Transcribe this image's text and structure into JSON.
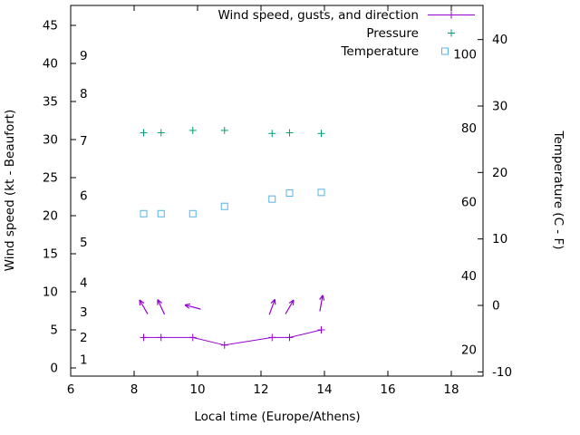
{
  "chart_data": {
    "type": "line",
    "title": "",
    "x_axis": {
      "label": "Local time (Europe/Athens)",
      "range": [
        6,
        19
      ],
      "ticks": [
        6,
        8,
        10,
        12,
        14,
        16,
        18
      ]
    },
    "y_left_axis": {
      "label": "Wind speed (kt - Beaufort)",
      "range_kt": [
        -1.1,
        47.6
      ],
      "ticks_kt": [
        0,
        5,
        10,
        15,
        20,
        25,
        30,
        35,
        40,
        45
      ],
      "beaufort_labels": [
        {
          "label": "1",
          "kt": 1.1
        },
        {
          "label": "2",
          "kt": 4.0
        },
        {
          "label": "3",
          "kt": 7.3
        },
        {
          "label": "4",
          "kt": 11.2
        },
        {
          "label": "5",
          "kt": 16.5
        },
        {
          "label": "6",
          "kt": 22.6
        },
        {
          "label": "7",
          "kt": 29.8
        },
        {
          "label": "8",
          "kt": 36.0
        },
        {
          "label": "9",
          "kt": 41.0
        }
      ]
    },
    "y_right_axis": {
      "label": "Temperature (C - F)",
      "range_c": [
        -10.6,
        45.1
      ],
      "ticks_c": [
        -10,
        0,
        10,
        20,
        30,
        40
      ],
      "fahrenheit_labels": [
        {
          "label": "20",
          "f": 20
        },
        {
          "label": "40",
          "f": 40
        },
        {
          "label": "60",
          "f": 60
        },
        {
          "label": "80",
          "f": 80
        },
        {
          "label": "100",
          "f": 100
        }
      ]
    },
    "legend": {
      "position": "top-inside",
      "entries": [
        "Wind speed, gusts, and direction",
        "Pressure",
        "Temperature"
      ]
    },
    "series": [
      {
        "name": "Wind speed, gusts, and direction",
        "type": "linespoints",
        "marker": "plus",
        "color": "#9400d3",
        "x": [
          8.3,
          8.85,
          9.85,
          10.85,
          12.35,
          12.9,
          13.9
        ],
        "y_kt": [
          4,
          4,
          4,
          3,
          4,
          4,
          5
        ]
      },
      {
        "name": "Wind direction arrows",
        "type": "arrows",
        "color": "#9400d3",
        "arrows": [
          {
            "x": 8.3,
            "y_kt": 8.0,
            "angle_deg": 120
          },
          {
            "x": 8.85,
            "y_kt": 8.0,
            "angle_deg": 115
          },
          {
            "x": 9.85,
            "y_kt": 8.0,
            "angle_deg": 165
          },
          {
            "x": 12.35,
            "y_kt": 8.0,
            "angle_deg": 70
          },
          {
            "x": 12.9,
            "y_kt": 8.0,
            "angle_deg": 60
          },
          {
            "x": 13.9,
            "y_kt": 8.5,
            "angle_deg": 80
          }
        ]
      },
      {
        "name": "Pressure",
        "type": "points",
        "marker": "plus",
        "color": "#009e73",
        "x": [
          8.3,
          8.85,
          9.85,
          10.85,
          12.35,
          12.9,
          13.9
        ],
        "y_kt": [
          30.9,
          30.9,
          31.2,
          31.2,
          30.8,
          30.9,
          30.8
        ]
      },
      {
        "name": "Temperature",
        "type": "points",
        "marker": "square-open",
        "color": "#56b4e9",
        "x": [
          8.3,
          8.85,
          9.85,
          10.85,
          12.35,
          12.9,
          13.9
        ],
        "y_c": [
          13.8,
          13.8,
          13.8,
          14.9,
          16.0,
          16.9,
          17.0
        ]
      }
    ]
  }
}
